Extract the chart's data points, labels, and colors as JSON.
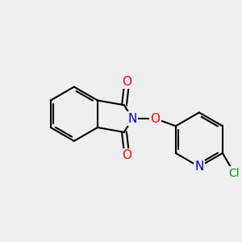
{
  "bg_color": "#efefef",
  "atom_colors": {
    "C": "#000000",
    "N": "#0000cc",
    "O": "#ff0000",
    "Cl": "#009900"
  },
  "bond_color": "#000000",
  "bond_width": 1.5,
  "font_size_atoms": 11,
  "font_size_cl": 10,
  "figsize": [
    3.0,
    3.0
  ],
  "dpi": 100
}
